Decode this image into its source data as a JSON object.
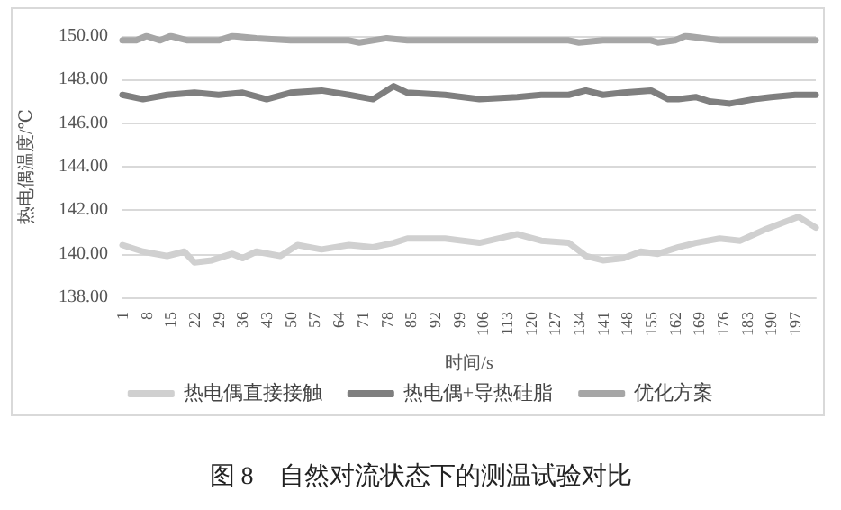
{
  "chart_data": {
    "type": "line",
    "title": "图 8　自然对流状态下的测温试验对比",
    "xlabel": "时间/s",
    "ylabel": "热电偶温度/℃",
    "xlim": [
      1,
      203
    ],
    "xticks": [
      1,
      8,
      15,
      22,
      29,
      36,
      43,
      50,
      57,
      64,
      71,
      78,
      85,
      92,
      99,
      106,
      113,
      120,
      127,
      134,
      141,
      148,
      155,
      162,
      169,
      176,
      183,
      190,
      197
    ],
    "ylim": [
      138,
      150
    ],
    "yticks": [
      {
        "value": 138,
        "label": "138.00"
      },
      {
        "value": 140,
        "label": "140.00"
      },
      {
        "value": 142,
        "label": "142.00"
      },
      {
        "value": 144,
        "label": "144.00"
      },
      {
        "value": 146,
        "label": "146.00"
      },
      {
        "value": 148,
        "label": "148.00"
      },
      {
        "value": 150,
        "label": "150.00"
      }
    ],
    "grid": "y",
    "legend": "bottom",
    "marker": "none",
    "line_style": "solid",
    "series": [
      {
        "name": "热电偶直接接触",
        "color": "#d0d0d0",
        "x": [
          1,
          7,
          14,
          19,
          22,
          27,
          33,
          36,
          40,
          47,
          52,
          59,
          67,
          74,
          80,
          84,
          95,
          105,
          116,
          123,
          131,
          136,
          141,
          147,
          152,
          157,
          163,
          168,
          175,
          181,
          188,
          193,
          198,
          203
        ],
        "values": [
          140.4,
          140.1,
          139.9,
          140.1,
          139.6,
          139.7,
          140.0,
          139.8,
          140.1,
          139.9,
          140.4,
          140.2,
          140.4,
          140.3,
          140.5,
          140.7,
          140.7,
          140.5,
          140.9,
          140.6,
          140.5,
          139.9,
          139.7,
          139.8,
          140.1,
          140.0,
          140.3,
          140.5,
          140.7,
          140.6,
          141.1,
          141.4,
          141.7,
          141.2
        ]
      },
      {
        "name": "热电偶+导热硅脂",
        "color": "#7f7f7f",
        "x": [
          1,
          7,
          14,
          22,
          29,
          36,
          43,
          50,
          59,
          67,
          74,
          80,
          84,
          95,
          105,
          116,
          123,
          131,
          136,
          141,
          147,
          155,
          160,
          163,
          168,
          172,
          178,
          185,
          190,
          197,
          203
        ],
        "values": [
          147.3,
          147.1,
          147.3,
          147.4,
          147.3,
          147.4,
          147.1,
          147.4,
          147.5,
          147.3,
          147.1,
          147.7,
          147.4,
          147.3,
          147.1,
          147.2,
          147.3,
          147.3,
          147.5,
          147.3,
          147.4,
          147.5,
          147.1,
          147.1,
          147.2,
          147.0,
          146.9,
          147.1,
          147.2,
          147.3,
          147.3
        ]
      },
      {
        "name": "优化方案",
        "color": "#a6a6a6",
        "x": [
          1,
          5,
          8,
          12,
          15,
          20,
          29,
          33,
          40,
          50,
          59,
          67,
          70,
          78,
          84,
          95,
          120,
          131,
          134,
          141,
          155,
          157,
          162,
          165,
          175,
          190,
          203
        ],
        "values": [
          149.8,
          149.8,
          150.0,
          149.8,
          150.0,
          149.8,
          149.8,
          150.0,
          149.9,
          149.8,
          149.8,
          149.8,
          149.7,
          149.9,
          149.8,
          149.8,
          149.8,
          149.8,
          149.7,
          149.8,
          149.8,
          149.7,
          149.8,
          150.0,
          149.8,
          149.8,
          149.8
        ]
      }
    ]
  }
}
